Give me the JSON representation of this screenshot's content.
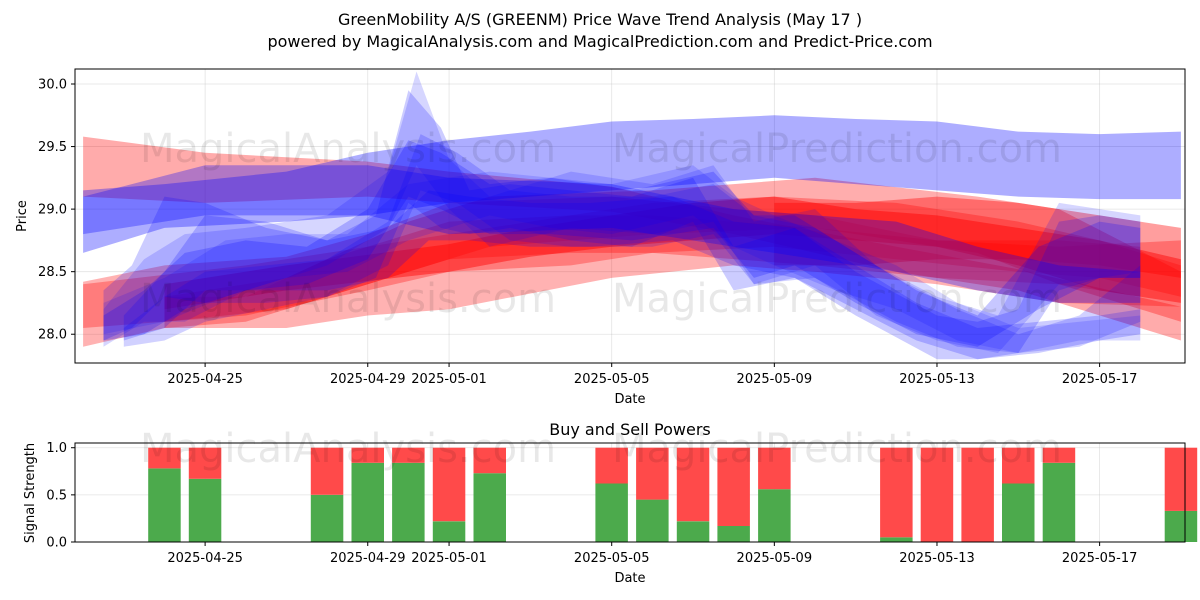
{
  "title_line1": "GreenMobility A/S (GREENM) Price Wave Trend Analysis (May 17 )",
  "title_line2": "powered by MagicalAnalysis.com and MagicalPrediction.com and Predict-Price.com",
  "watermarks": [
    "MagicalAnalysis.com",
    "MagicalPrediction.com"
  ],
  "colors": {
    "red": "#ff0000",
    "blue": "#0000ff",
    "green": "#4caa4c",
    "sell": "#ff4a4a"
  },
  "chart_data": [
    {
      "type": "area",
      "title": "",
      "xlabel": "Date",
      "ylabel": "Price",
      "ylim": [
        27.77,
        30.12
      ],
      "yticks": [
        28.0,
        28.5,
        29.0,
        29.5,
        30.0
      ],
      "ytick_labels": [
        "28.0",
        "28.5",
        "29.0",
        "29.5",
        "30.0"
      ],
      "xticks": [
        "2025-04-25",
        "2025-04-29",
        "2025-05-01",
        "2025-05-05",
        "2025-05-09",
        "2025-05-13",
        "2025-05-17"
      ],
      "xlim_days": [
        -3.2,
        24.1
      ],
      "grid": true,
      "series": [
        {
          "name": "red-band-1",
          "color": "red",
          "alpha": 0.33,
          "x": [
            -3,
            0,
            4,
            6,
            10,
            13,
            17,
            20,
            24
          ],
          "top": [
            29.58,
            29.45,
            29.38,
            29.3,
            29.18,
            28.95,
            28.7,
            28.52,
            28.22
          ],
          "bottom": [
            29.1,
            29.05,
            29.1,
            29.05,
            28.98,
            28.8,
            28.5,
            28.35,
            27.95
          ]
        },
        {
          "name": "red-band-2",
          "color": "red",
          "alpha": 0.3,
          "x": [
            -3,
            -1,
            2,
            4,
            6,
            10,
            13,
            15,
            18,
            21,
            24
          ],
          "top": [
            28.42,
            28.55,
            28.62,
            28.8,
            29.05,
            29.1,
            29.0,
            28.95,
            28.75,
            28.7,
            28.75
          ],
          "bottom": [
            27.9,
            28.05,
            28.05,
            28.15,
            28.2,
            28.45,
            28.55,
            28.5,
            28.4,
            28.25,
            28.22
          ]
        },
        {
          "name": "red-band-3",
          "color": "red",
          "alpha": 0.3,
          "x": [
            -3,
            1,
            4,
            6,
            9,
            11,
            14,
            17,
            20,
            22,
            24
          ],
          "top": [
            28.4,
            28.55,
            28.7,
            28.8,
            28.95,
            29.05,
            29.1,
            29.05,
            28.9,
            28.75,
            28.55
          ],
          "bottom": [
            28.05,
            28.15,
            28.35,
            28.5,
            28.55,
            28.65,
            28.7,
            28.6,
            28.5,
            28.45,
            28.3
          ]
        },
        {
          "name": "red-band-4",
          "color": "red",
          "alpha": 0.45,
          "x": [
            -1,
            2,
            6,
            8,
            10,
            12,
            14,
            16,
            18,
            20,
            22,
            24
          ],
          "top": [
            28.4,
            28.55,
            28.72,
            28.85,
            28.95,
            29.05,
            29.1,
            29.0,
            28.95,
            28.85,
            28.75,
            28.6
          ],
          "bottom": [
            28.2,
            28.35,
            28.5,
            28.62,
            28.7,
            28.75,
            28.8,
            28.75,
            28.7,
            28.55,
            28.35,
            28.25
          ]
        },
        {
          "name": "red-band-5",
          "color": "red",
          "alpha": 0.32,
          "x": [
            -1,
            2,
            5,
            7,
            11,
            15,
            19,
            21,
            24
          ],
          "top": [
            28.3,
            28.45,
            28.9,
            29.1,
            29.15,
            29.25,
            29.1,
            29.0,
            28.5
          ],
          "bottom": [
            28.1,
            28.2,
            28.5,
            28.7,
            28.8,
            28.85,
            28.65,
            28.4,
            28.1
          ]
        },
        {
          "name": "red-band-6",
          "color": "red",
          "alpha": 0.3,
          "x": [
            -1,
            1,
            3,
            6,
            9,
            11,
            15,
            18,
            21,
            23
          ],
          "top": [
            28.3,
            28.3,
            28.6,
            28.9,
            28.95,
            28.95,
            28.85,
            28.75,
            28.75,
            28.7
          ],
          "bottom": [
            28.05,
            28.1,
            28.3,
            28.6,
            28.65,
            28.65,
            28.55,
            28.45,
            28.4,
            28.3
          ]
        },
        {
          "name": "red-band-7",
          "color": "red",
          "alpha": 0.38,
          "x": [
            14,
            16,
            18,
            20,
            22,
            24
          ],
          "top": [
            29.05,
            29.05,
            29.1,
            29.05,
            28.95,
            28.85
          ],
          "bottom": [
            28.55,
            28.55,
            28.6,
            28.6,
            28.55,
            28.45
          ]
        },
        {
          "name": "blue-band-1",
          "color": "blue",
          "alpha": 0.32,
          "x": [
            -3,
            -1,
            2,
            4,
            6,
            8,
            10,
            12,
            14,
            16,
            18,
            20,
            22,
            24
          ],
          "top": [
            29.15,
            29.2,
            29.3,
            29.45,
            29.55,
            29.62,
            29.7,
            29.72,
            29.75,
            29.72,
            29.7,
            29.62,
            29.6,
            29.62
          ],
          "bottom": [
            28.65,
            28.85,
            28.9,
            28.95,
            29.05,
            29.1,
            29.15,
            29.2,
            29.25,
            29.2,
            29.15,
            29.1,
            29.08,
            29.08
          ]
        },
        {
          "name": "blue-band-2",
          "color": "blue",
          "alpha": 0.3,
          "x": [
            -3,
            0,
            4,
            6,
            10,
            13,
            17,
            19,
            21,
            23
          ],
          "top": [
            29.1,
            29.35,
            29.35,
            29.25,
            29.2,
            29.0,
            28.9,
            28.7,
            28.55,
            28.5
          ],
          "bottom": [
            28.8,
            28.95,
            28.95,
            28.8,
            28.85,
            28.7,
            28.5,
            28.35,
            28.25,
            28.25
          ]
        },
        {
          "name": "blue-wave-1",
          "color": "blue",
          "alpha": 0.2,
          "x": [
            -2.5,
            -1.8,
            -1,
            0,
            1.5,
            3,
            4.2,
            5,
            5.8,
            6.5,
            7.5,
            9,
            10.5,
            12,
            13,
            14.5,
            16,
            18,
            19,
            20,
            21,
            22,
            23
          ],
          "top": [
            28.35,
            28.55,
            29.1,
            29.05,
            28.85,
            28.75,
            28.95,
            29.95,
            29.65,
            29.15,
            29.2,
            29.15,
            29.1,
            29.25,
            28.7,
            28.85,
            28.5,
            28.15,
            28.1,
            28.2,
            28.9,
            28.95,
            28.9
          ],
          "bottom": [
            27.95,
            28.05,
            28.3,
            28.25,
            28.25,
            28.3,
            28.45,
            29.05,
            28.85,
            28.8,
            28.85,
            28.75,
            28.7,
            28.9,
            28.35,
            28.45,
            28.15,
            27.8,
            27.8,
            27.85,
            28.35,
            28.45,
            28.45
          ]
        },
        {
          "name": "blue-wave-2",
          "color": "blue",
          "alpha": 0.16,
          "x": [
            -2.5,
            -1.5,
            -0.5,
            1,
            3,
            4.5,
            5.2,
            6,
            7,
            9,
            11,
            12.5,
            13.5,
            15,
            16.5,
            18,
            19.5,
            21,
            23
          ],
          "top": [
            28.2,
            28.6,
            28.8,
            28.85,
            28.95,
            29.3,
            30.1,
            29.4,
            29.1,
            29.3,
            29.2,
            29.35,
            28.9,
            29.0,
            28.55,
            28.3,
            28.15,
            29.05,
            28.95
          ],
          "bottom": [
            27.9,
            28.1,
            28.1,
            28.35,
            28.55,
            28.85,
            29.35,
            29.0,
            28.7,
            28.85,
            28.8,
            28.9,
            28.4,
            28.55,
            28.15,
            27.95,
            27.85,
            28.4,
            28.5
          ]
        },
        {
          "name": "blue-wave-3",
          "color": "blue",
          "alpha": 0.22,
          "x": [
            -2.5,
            -1.5,
            -0.5,
            1,
            2.5,
            4,
            5,
            5.8,
            7,
            8.5,
            10.5,
            12.5,
            13.5,
            14.5,
            16,
            17.5,
            19,
            20.5,
            22,
            23
          ],
          "top": [
            28.15,
            28.35,
            28.65,
            28.75,
            28.7,
            29.0,
            29.55,
            29.45,
            29.2,
            29.25,
            29.15,
            29.3,
            28.95,
            28.95,
            28.65,
            28.35,
            28.15,
            28.7,
            28.9,
            28.85
          ],
          "bottom": [
            27.95,
            28.0,
            28.2,
            28.35,
            28.4,
            28.6,
            29.1,
            29.0,
            28.8,
            28.8,
            28.75,
            28.85,
            28.45,
            28.55,
            28.25,
            28.0,
            27.9,
            28.2,
            28.45,
            28.45
          ]
        },
        {
          "name": "blue-wave-4",
          "color": "blue",
          "alpha": 0.18,
          "x": [
            -2,
            -1,
            0,
            1.5,
            3,
            4.5,
            5.3,
            6.2,
            7.5,
            9,
            11,
            12.5,
            13.5,
            15,
            17,
            18.5,
            20,
            21.5,
            23
          ],
          "top": [
            28.05,
            28.3,
            28.5,
            28.55,
            28.6,
            28.9,
            29.6,
            29.45,
            29.15,
            29.1,
            29.1,
            29.2,
            28.95,
            28.85,
            28.45,
            28.2,
            28.0,
            28.15,
            28.55
          ],
          "bottom": [
            27.9,
            27.95,
            28.1,
            28.2,
            28.3,
            28.55,
            29.15,
            29.05,
            28.75,
            28.7,
            28.7,
            28.8,
            28.4,
            28.45,
            28.1,
            27.9,
            27.85,
            27.9,
            28.1
          ]
        },
        {
          "name": "blue-wave-5",
          "color": "blue",
          "alpha": 0.15,
          "x": [
            -2.5,
            -1,
            0.5,
            2,
            3.5,
            5,
            6,
            7,
            8.5,
            10,
            12,
            13,
            14,
            15.5,
            17,
            18.5,
            20,
            21.5,
            23
          ],
          "top": [
            28.25,
            28.45,
            28.75,
            28.8,
            28.8,
            29.2,
            29.25,
            29.3,
            29.25,
            29.2,
            29.35,
            29.1,
            28.95,
            28.75,
            28.55,
            28.25,
            28.05,
            28.1,
            28.15
          ],
          "bottom": [
            28.0,
            28.1,
            28.3,
            28.45,
            28.5,
            28.75,
            28.85,
            28.95,
            28.85,
            28.8,
            28.95,
            28.7,
            28.55,
            28.35,
            28.2,
            27.95,
            27.85,
            27.95,
            27.95
          ]
        },
        {
          "name": "blue-wave-6",
          "color": "blue",
          "alpha": 0.2,
          "x": [
            -2,
            -1,
            0,
            1.5,
            3,
            4.5,
            5.5,
            6.5,
            8,
            9.5,
            11.5,
            13,
            14.5,
            16,
            17.5,
            19,
            20.5,
            22,
            23
          ],
          "top": [
            28.15,
            28.5,
            28.95,
            28.9,
            28.75,
            28.85,
            29.15,
            29.1,
            29.05,
            29.05,
            29.1,
            28.9,
            28.85,
            28.55,
            28.25,
            28.05,
            28.1,
            28.15,
            28.2
          ],
          "bottom": [
            27.95,
            28.05,
            28.35,
            28.35,
            28.35,
            28.45,
            28.75,
            28.75,
            28.7,
            28.7,
            28.75,
            28.55,
            28.45,
            28.2,
            27.95,
            27.8,
            27.85,
            27.95,
            28.0
          ]
        }
      ]
    },
    {
      "type": "bar",
      "title": "Buy and Sell Powers",
      "xlabel": "Date",
      "ylabel": "Signal Strength",
      "ylim": [
        0,
        1.05
      ],
      "yticks": [
        0.0,
        0.5,
        1.0
      ],
      "ytick_labels": [
        "0.0",
        "0.5",
        "1.0"
      ],
      "xticks": [
        "2025-04-25",
        "2025-04-29",
        "2025-05-01",
        "2025-05-05",
        "2025-05-09",
        "2025-05-13",
        "2025-05-17"
      ],
      "xlim_days": [
        -3.2,
        24.1
      ],
      "grid": true,
      "categories": [
        "2025-04-24",
        "2025-04-25",
        "2025-04-28",
        "2025-04-29",
        "2025-04-30",
        "2025-05-01",
        "2025-05-02",
        "2025-05-05",
        "2025-05-06",
        "2025-05-07",
        "2025-05-08",
        "2025-05-09",
        "2025-05-12",
        "2025-05-13",
        "2025-05-14",
        "2025-05-15",
        "2025-05-16",
        "2025-05-19"
      ],
      "series": [
        {
          "name": "Buy",
          "color": "green",
          "values": [
            0.78,
            0.67,
            0.5,
            0.84,
            0.84,
            0.22,
            0.73,
            0.62,
            0.45,
            0.22,
            0.17,
            0.56,
            0.05,
            0.0,
            0.0,
            0.62,
            0.84,
            0.33
          ]
        },
        {
          "name": "Sell",
          "color": "sell",
          "values": [
            0.22,
            0.33,
            0.5,
            0.16,
            0.16,
            0.78,
            0.27,
            0.38,
            0.55,
            0.78,
            0.83,
            0.44,
            0.95,
            1.0,
            1.0,
            0.38,
            0.16,
            0.67
          ]
        }
      ]
    }
  ]
}
